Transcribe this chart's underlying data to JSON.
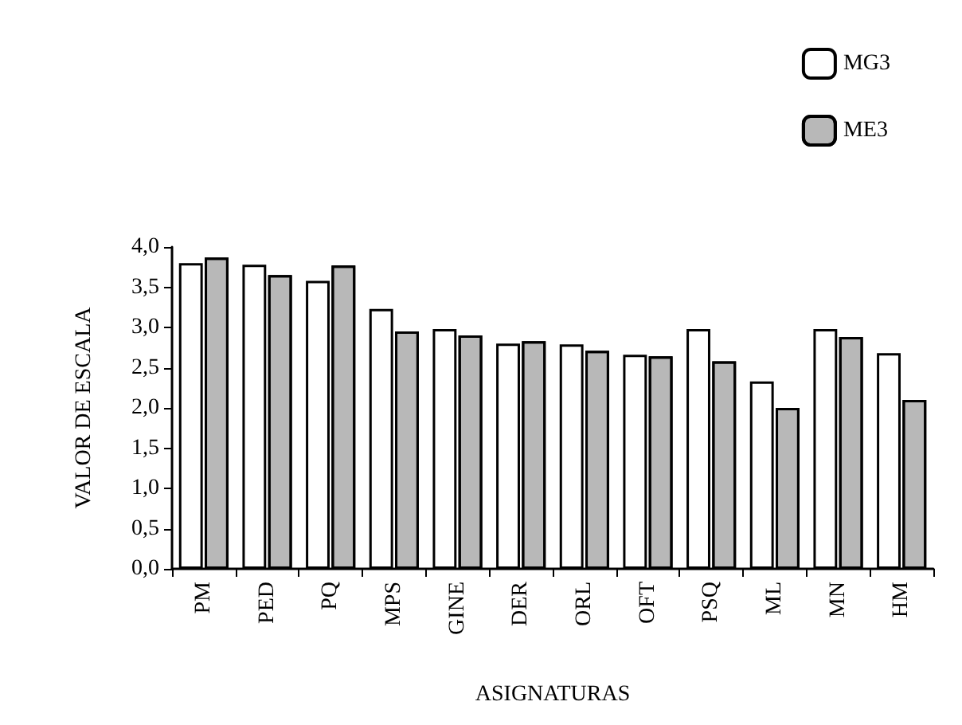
{
  "chart_data": {
    "type": "bar",
    "xlabel": "ASIGNATURAS",
    "ylabel": "VALOR DE ESCALA",
    "categories": [
      "PM",
      "PED",
      "PQ",
      "MPS",
      "GINE",
      "DER",
      "ORL",
      "OFT",
      "PSQ",
      "ML",
      "MN",
      "HM"
    ],
    "series": [
      {
        "name": "MG3",
        "color": "#ffffff",
        "values": [
          3.8,
          3.78,
          3.58,
          3.23,
          2.98,
          2.8,
          2.79,
          2.66,
          2.98,
          2.33,
          2.98,
          2.68
        ]
      },
      {
        "name": "ME3",
        "color": "#b8b8b8",
        "values": [
          3.87,
          3.65,
          3.77,
          2.95,
          2.9,
          2.83,
          2.71,
          2.64,
          2.58,
          2.0,
          2.88,
          2.1
        ]
      }
    ],
    "ylim": [
      0,
      4
    ],
    "yticks": [
      {
        "value": 0,
        "label": "0,0"
      },
      {
        "value": 0.5,
        "label": "0,5"
      },
      {
        "value": 1,
        "label": "1,0"
      },
      {
        "value": 1.5,
        "label": "1,5"
      },
      {
        "value": 2,
        "label": "2,0"
      },
      {
        "value": 2.5,
        "label": "2,5"
      },
      {
        "value": 3,
        "label": "3,0"
      },
      {
        "value": 3.5,
        "label": "3,5"
      },
      {
        "value": 4,
        "label": "4,0"
      }
    ],
    "grid": false,
    "legend": "top right"
  }
}
